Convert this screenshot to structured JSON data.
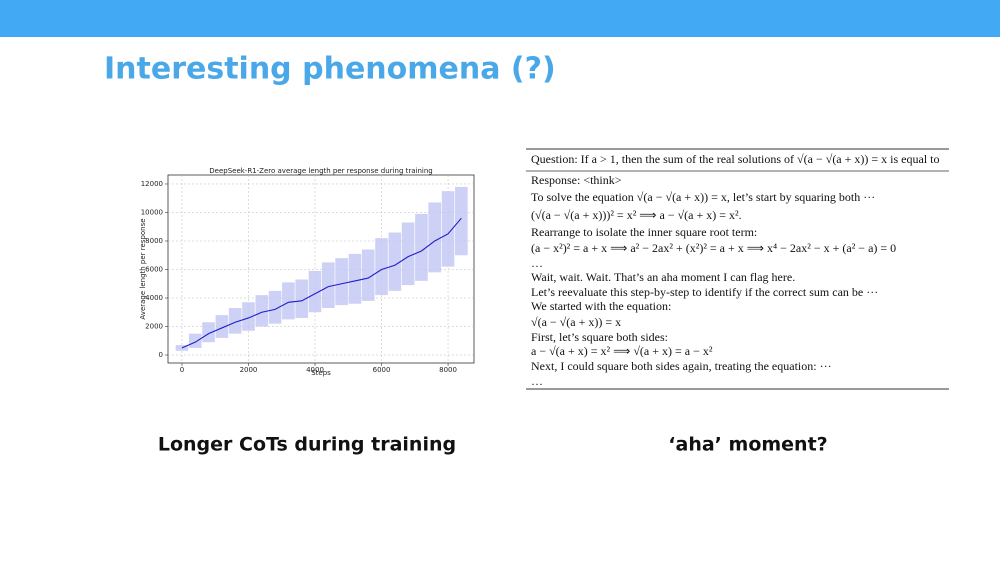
{
  "slide": {
    "title": "Interesting phenomena (?)",
    "left_caption": "Longer CoTs during training",
    "right_caption": "‘aha’ moment?"
  },
  "chart_data": {
    "type": "line",
    "title": "DeepSeek-R1-Zero average length per response during training",
    "xlabel": "Steps",
    "ylabel": "Average length per response",
    "x": [
      0,
      400,
      800,
      1200,
      1600,
      2000,
      2400,
      2800,
      3200,
      3600,
      4000,
      4400,
      4800,
      5200,
      5600,
      6000,
      6400,
      6800,
      7200,
      7600,
      8000,
      8400
    ],
    "series": [
      {
        "color": "#1f1fc8",
        "values": [
          500,
          900,
          1500,
          1900,
          2300,
          2600,
          3000,
          3200,
          3700,
          3800,
          4300,
          4800,
          5000,
          5200,
          5400,
          6000,
          6300,
          6900,
          7300,
          8000,
          8500,
          9600
        ]
      }
    ],
    "band_color": "#c3c6f4",
    "band_low": [
      300,
      500,
      900,
      1200,
      1500,
      1700,
      2000,
      2200,
      2500,
      2600,
      3000,
      3300,
      3500,
      3600,
      3800,
      4200,
      4500,
      4900,
      5200,
      5800,
      6200,
      7000
    ],
    "band_high": [
      700,
      1500,
      2300,
      2800,
      3300,
      3700,
      4200,
      4500,
      5100,
      5300,
      5900,
      6500,
      6800,
      7100,
      7400,
      8200,
      8600,
      9300,
      9900,
      10700,
      11500,
      11800
    ],
    "xlim": [
      -420,
      8780
    ],
    "ylim": [
      -560,
      12630
    ],
    "xticks": [
      0,
      2000,
      4000,
      6000,
      8000
    ],
    "yticks": [
      0,
      2000,
      4000,
      6000,
      8000,
      10000,
      12000
    ],
    "grid": true
  },
  "panel": {
    "question": "Question: If a > 1, then the sum of the real solutions of √(a − √(a + x)) = x is equal to",
    "lines": [
      "Response: <think>",
      "To solve the equation √(a − √(a + x)) = x, let’s start by squaring both ···",
      "(√(a − √(a + x)))² = x²  ⟹  a − √(a + x) = x².",
      "Rearrange to isolate the inner square root term:",
      "(a − x²)² = a + x  ⟹  a² − 2ax² + (x²)² = a + x  ⟹  x⁴ − 2ax² − x + (a² − a) = 0",
      "…",
      "Wait, wait. Wait. That’s an aha moment I can flag here.",
      "Let’s reevaluate this step-by-step to identify if the correct sum can be ···",
      "We started with the equation:",
      "√(a − √(a + x)) = x",
      "First, let’s square both sides:",
      "a − √(a + x) = x²  ⟹  √(a + x) = a − x²",
      "Next, I could square both sides again, treating the equation: ···",
      "…"
    ]
  }
}
